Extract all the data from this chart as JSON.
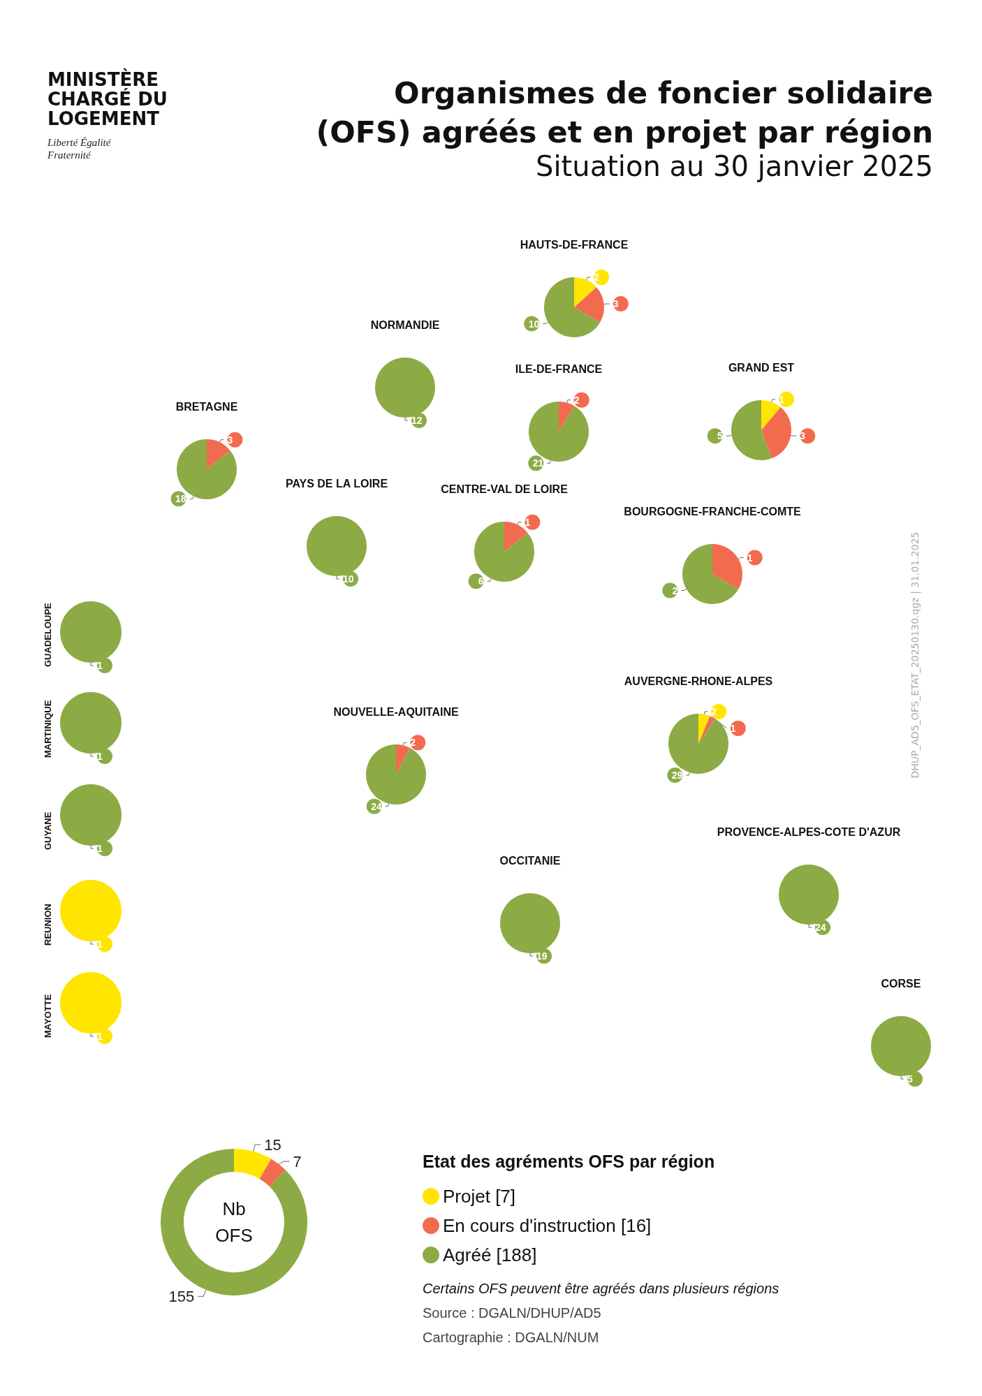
{
  "chart_data": [
    {
      "type": "other",
      "title": "Organismes de foncier solidaire (OFS) agréés et en projet par région",
      "subtitle": "Situation au 30 janvier 2025",
      "annotations": [
        "MINISTÈRE CHARGÉ DU LOGEMENT",
        "Liberté Égalité Fraternité",
        "DHUP_AD5_OFS_ETAT_20250130.qgz | 31.01.2025"
      ]
    },
    {
      "type": "pie",
      "title": "HAUTS-DE-FRANCE",
      "categories": [
        null,
        null,
        null
      ],
      "values": [
        2,
        3,
        10
      ],
      "value_labels": [
        "2",
        "3",
        "10"
      ],
      "colors": [
        "#ffe500",
        "#f26b4f",
        "#8cab45"
      ]
    },
    {
      "type": "pie",
      "title": "NORMANDIE",
      "categories": [
        null,
        null,
        null
      ],
      "values": [
        0,
        0,
        12
      ],
      "value_labels": [
        null,
        null,
        "12"
      ],
      "colors": [
        "#ffe500",
        "#f26b4f",
        "#8cab45"
      ]
    },
    {
      "type": "pie",
      "title": "ILE-DE-FRANCE",
      "categories": [
        null,
        null,
        null
      ],
      "values": [
        0,
        2,
        21
      ],
      "value_labels": [
        null,
        "2",
        "21"
      ],
      "colors": [
        "#ffe500",
        "#f26b4f",
        "#8cab45"
      ]
    },
    {
      "type": "pie",
      "title": "GRAND EST",
      "categories": [
        null,
        null,
        null
      ],
      "values": [
        1,
        3,
        5
      ],
      "value_labels": [
        "1",
        "3",
        "5"
      ],
      "colors": [
        "#ffe500",
        "#f26b4f",
        "#8cab45"
      ]
    },
    {
      "type": "pie",
      "title": "BRETAGNE",
      "categories": [
        null,
        null,
        null
      ],
      "values": [
        0,
        3,
        18
      ],
      "value_labels": [
        null,
        "3",
        "18"
      ],
      "colors": [
        "#ffe500",
        "#f26b4f",
        "#8cab45"
      ]
    },
    {
      "type": "pie",
      "title": "PAYS DE LA LOIRE",
      "categories": [
        null,
        null,
        null
      ],
      "values": [
        0,
        0,
        10
      ],
      "value_labels": [
        null,
        null,
        "10"
      ],
      "colors": [
        "#ffe500",
        "#f26b4f",
        "#8cab45"
      ]
    },
    {
      "type": "pie",
      "title": "CENTRE-VAL DE LOIRE",
      "categories": [
        null,
        null,
        null
      ],
      "values": [
        0,
        1,
        6
      ],
      "value_labels": [
        null,
        "1",
        "6"
      ],
      "colors": [
        "#ffe500",
        "#f26b4f",
        "#8cab45"
      ]
    },
    {
      "type": "pie",
      "title": "BOURGOGNE-FRANCHE-COMTE",
      "categories": [
        null,
        null,
        null
      ],
      "values": [
        0,
        1,
        2
      ],
      "value_labels": [
        null,
        "1",
        "2"
      ],
      "colors": [
        "#ffe500",
        "#f26b4f",
        "#8cab45"
      ]
    },
    {
      "type": "pie",
      "title": "AUVERGNE-RHONE-ALPES",
      "categories": [
        null,
        null,
        null
      ],
      "values": [
        2,
        1,
        29
      ],
      "value_labels": [
        "2",
        "1",
        "29"
      ],
      "colors": [
        "#ffe500",
        "#f26b4f",
        "#8cab45"
      ]
    },
    {
      "type": "pie",
      "title": "NOUVELLE-AQUITAINE",
      "categories": [
        null,
        null,
        null
      ],
      "values": [
        0,
        2,
        24
      ],
      "value_labels": [
        null,
        "2",
        "24"
      ],
      "colors": [
        "#ffe500",
        "#f26b4f",
        "#8cab45"
      ]
    },
    {
      "type": "pie",
      "title": "OCCITANIE",
      "categories": [
        null,
        null,
        null
      ],
      "values": [
        0,
        0,
        19
      ],
      "value_labels": [
        null,
        null,
        "19"
      ],
      "colors": [
        "#ffe500",
        "#f26b4f",
        "#8cab45"
      ]
    },
    {
      "type": "pie",
      "title": "PROVENCE-ALPES-COTE D'AZUR",
      "categories": [
        null,
        null,
        null
      ],
      "values": [
        0,
        0,
        24
      ],
      "value_labels": [
        null,
        null,
        "24"
      ],
      "colors": [
        "#ffe500",
        "#f26b4f",
        "#8cab45"
      ]
    },
    {
      "type": "pie",
      "title": "CORSE",
      "categories": [
        null,
        null,
        null
      ],
      "values": [
        0,
        0,
        5
      ],
      "value_labels": [
        null,
        null,
        "5"
      ],
      "colors": [
        "#ffe500",
        "#f26b4f",
        "#8cab45"
      ]
    },
    {
      "type": "pie",
      "title": "GUADELOUPE",
      "categories": [
        null,
        null,
        null
      ],
      "values": [
        0,
        0,
        1
      ],
      "value_labels": [
        null,
        null,
        "1"
      ],
      "colors": [
        "#ffe500",
        "#f26b4f",
        "#8cab45"
      ]
    },
    {
      "type": "pie",
      "title": "MARTINIQUE",
      "categories": [
        null,
        null,
        null
      ],
      "values": [
        0,
        0,
        1
      ],
      "value_labels": [
        null,
        null,
        "1"
      ],
      "colors": [
        "#ffe500",
        "#f26b4f",
        "#8cab45"
      ]
    },
    {
      "type": "pie",
      "title": "GUYANE",
      "categories": [
        null,
        null,
        null
      ],
      "values": [
        0,
        0,
        1
      ],
      "value_labels": [
        null,
        null,
        "1"
      ],
      "colors": [
        "#ffe500",
        "#f26b4f",
        "#8cab45"
      ]
    },
    {
      "type": "pie",
      "title": "REUNION",
      "categories": [
        null,
        null,
        null
      ],
      "values": [
        1,
        0,
        0
      ],
      "value_labels": [
        "1",
        null,
        null
      ],
      "colors": [
        "#ffe500",
        "#f26b4f",
        "#8cab45"
      ]
    },
    {
      "type": "pie",
      "title": "MAYOTTE",
      "categories": [
        null,
        null,
        null
      ],
      "values": [
        1,
        0,
        0
      ],
      "value_labels": [
        "1",
        null,
        null
      ],
      "colors": [
        "#ffe500",
        "#f26b4f",
        "#8cab45"
      ]
    },
    {
      "type": "donut",
      "legend_title": "Etat des agréments OFS par région",
      "categories": [
        "Projet [7]",
        "En cours d'instruction [16]",
        "Agréé [188]"
      ],
      "values": [
        15,
        7,
        155
      ],
      "colors": [
        "#ffe500",
        "#f26b4f",
        "#8cab45"
      ],
      "data_labels": true,
      "legend": "right",
      "annotations": [
        "Nb OFS",
        "Certains OFS peuvent être agréés dans plusieurs régions",
        "Source : DGALN/DHUP/AD5",
        "Cartographie : DGALN/NUM"
      ]
    }
  ]
}
